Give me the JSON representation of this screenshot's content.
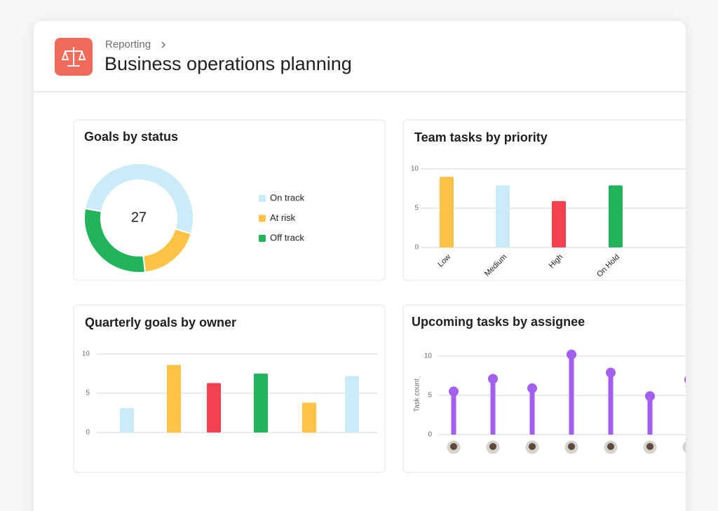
{
  "header": {
    "breadcrumb": "Reporting",
    "title": "Business operations planning"
  },
  "chart_data": [
    {
      "type": "donut",
      "title": "Goals by status",
      "total": 27,
      "categories": [
        "On track",
        "At risk",
        "Off track"
      ],
      "values": [
        14,
        5,
        8
      ],
      "colors": [
        "#c9ecf8",
        "#fdc347",
        "#22b35d"
      ]
    },
    {
      "type": "bar",
      "title": "Team tasks by priority",
      "categories": [
        "Low",
        "Medium",
        "High",
        "On Hold"
      ],
      "values": [
        9,
        7.9,
        5.9,
        7.9
      ],
      "colors": [
        "#fdc347",
        "#c9ecf8",
        "#f2414f",
        "#22b35d"
      ],
      "ylim": [
        0,
        10
      ],
      "yticks": [
        0,
        5,
        10
      ],
      "grid": true
    },
    {
      "type": "bar",
      "title": "Quarterly goals by owner",
      "categories": [
        null,
        null,
        null,
        null,
        null,
        null
      ],
      "values": [
        3.1,
        8.6,
        6.3,
        7.5,
        3.8,
        7.2
      ],
      "colors": [
        "#c9ecf8",
        "#fdc347",
        "#f2414f",
        "#22b35d",
        "#fdc347",
        "#c9ecf8"
      ],
      "ylim": [
        0,
        10
      ],
      "yticks": [
        0,
        5,
        10
      ],
      "grid": true
    },
    {
      "type": "lollipop",
      "title": "Upcoming tasks by assignee",
      "ylabel": "Task count",
      "categories": [
        null,
        null,
        null,
        null,
        null,
        null,
        null
      ],
      "values": [
        5.5,
        7.1,
        5.9,
        10.2,
        7.9,
        4.9,
        7
      ],
      "color": "#a35ff0",
      "ylim": [
        0,
        11
      ],
      "yticks": [
        0,
        5,
        10
      ],
      "grid": true
    }
  ]
}
